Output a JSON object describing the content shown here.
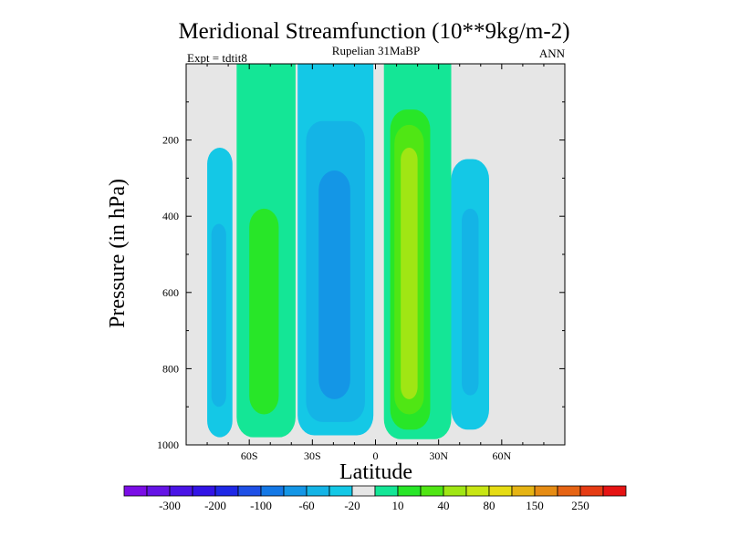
{
  "chart_data": {
    "type": "contour",
    "title": "Meridional Streamfunction (10**9kg/m-2)",
    "subtitle": "Rupelian  31MaBP",
    "left_label": "Expt = tdtit8",
    "right_label": "ANN",
    "xlabel": "Latitude",
    "ylabel": "Pressure (in hPa)",
    "xlim": [
      -90,
      90
    ],
    "ylim": [
      0,
      1000
    ],
    "x_ticks": [
      {
        "value": -60,
        "label": "60S"
      },
      {
        "value": -30,
        "label": "30S"
      },
      {
        "value": 0,
        "label": "0"
      },
      {
        "value": 30,
        "label": "30N"
      },
      {
        "value": 60,
        "label": "60N"
      }
    ],
    "y_ticks": [
      {
        "value": 200,
        "label": "200"
      },
      {
        "value": 400,
        "label": "400"
      },
      {
        "value": 600,
        "label": "600"
      },
      {
        "value": 800,
        "label": "800"
      },
      {
        "value": 1000,
        "label": "1000"
      }
    ],
    "colorbar": {
      "colors": [
        "#7b0ee6",
        "#6514e6",
        "#4a14e6",
        "#3214e6",
        "#1e28e6",
        "#1e50e6",
        "#1478e6",
        "#1496e6",
        "#14b4e6",
        "#14c8e6",
        "#e6e6e6",
        "#14e696",
        "#28e628",
        "#50e614",
        "#a0e614",
        "#c8e614",
        "#e6dc14",
        "#e6b414",
        "#e68c14",
        "#e66414",
        "#e63c14",
        "#e61414"
      ],
      "labels": [
        {
          "boundary": 1,
          "label": "-300"
        },
        {
          "boundary": 3,
          "label": "-200"
        },
        {
          "boundary": 5,
          "label": "-100"
        },
        {
          "boundary": 7,
          "label": "-60"
        },
        {
          "boundary": 9,
          "label": "-20"
        },
        {
          "boundary": 11,
          "label": "10"
        },
        {
          "boundary": 13,
          "label": "40"
        },
        {
          "boundary": 15,
          "label": "80"
        },
        {
          "boundary": 17,
          "label": "150"
        },
        {
          "boundary": 19,
          "label": "250"
        }
      ]
    },
    "cells": [
      {
        "name": "sh-polar-cell",
        "level": "-20",
        "color": "#14c8e6",
        "lat_min": -80,
        "lat_max": -68,
        "p_top": 220,
        "p_bottom": 980
      },
      {
        "name": "sh-polar-core",
        "level": "-60",
        "color": "#14b4e6",
        "lat_min": -78,
        "lat_max": -71,
        "p_top": 420,
        "p_bottom": 900
      },
      {
        "name": "sh-ferrel-cell",
        "level": "10",
        "color": "#14e696",
        "lat_min": -66,
        "lat_max": -38,
        "p_top": 0,
        "p_bottom": 980
      },
      {
        "name": "sh-ferrel-core",
        "level": "40",
        "color": "#28e628",
        "lat_min": -60,
        "lat_max": -46,
        "p_top": 380,
        "p_bottom": 920
      },
      {
        "name": "sh-hadley-cell",
        "level": "-20",
        "color": "#14c8e6",
        "lat_min": -37,
        "lat_max": -1,
        "p_top": 0,
        "p_bottom": 975
      },
      {
        "name": "sh-hadley-mid",
        "level": "-60",
        "color": "#14b4e6",
        "lat_min": -33,
        "lat_max": -5,
        "p_top": 150,
        "p_bottom": 940
      },
      {
        "name": "sh-hadley-core",
        "level": "-100",
        "color": "#1496e6",
        "lat_min": -27,
        "lat_max": -12,
        "p_top": 280,
        "p_bottom": 880
      },
      {
        "name": "nh-hadley-cell",
        "level": "10",
        "color": "#14e696",
        "lat_min": 4,
        "lat_max": 36,
        "p_top": 0,
        "p_bottom": 985
      },
      {
        "name": "nh-hadley-mid",
        "level": "40",
        "color": "#28e628",
        "lat_min": 7,
        "lat_max": 26,
        "p_top": 120,
        "p_bottom": 960
      },
      {
        "name": "nh-hadley-core",
        "level": "80",
        "color": "#50e614",
        "lat_min": 9,
        "lat_max": 23,
        "p_top": 160,
        "p_bottom": 920
      },
      {
        "name": "nh-hadley-inner",
        "level": "150",
        "color": "#a0e614",
        "lat_min": 12,
        "lat_max": 20,
        "p_top": 220,
        "p_bottom": 880
      },
      {
        "name": "nh-ferrel-cell",
        "level": "-20",
        "color": "#14c8e6",
        "lat_min": 36,
        "lat_max": 54,
        "p_top": 250,
        "p_bottom": 960
      },
      {
        "name": "nh-ferrel-core",
        "level": "-60",
        "color": "#14b4e6",
        "lat_min": 41,
        "lat_max": 49,
        "p_top": 380,
        "p_bottom": 870
      }
    ]
  }
}
